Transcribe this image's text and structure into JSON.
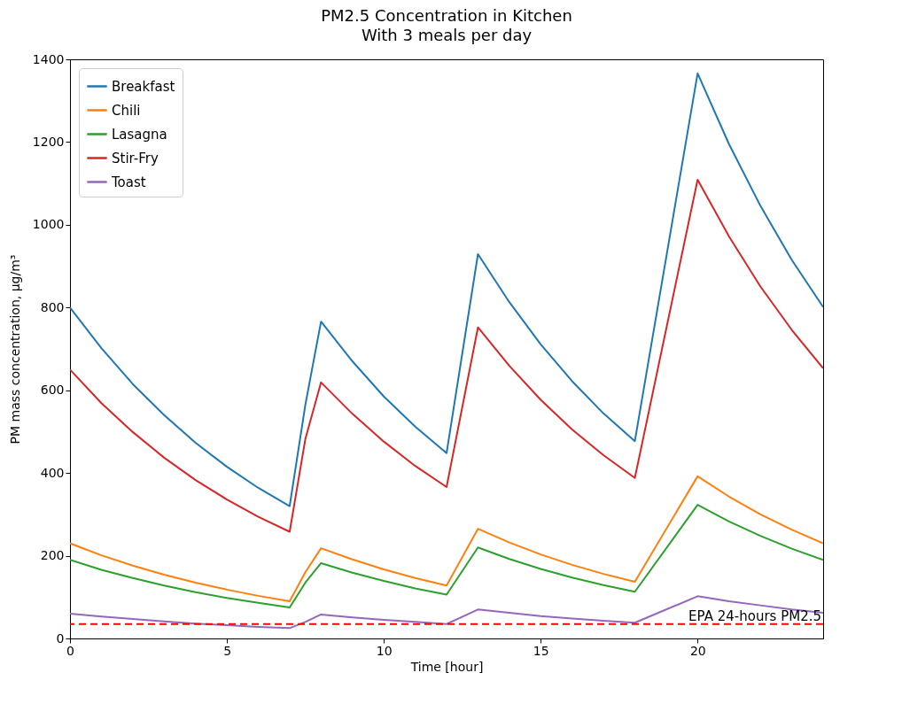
{
  "chart_data": {
    "type": "line",
    "title": "PM2.5 Concentration in Kitchen",
    "subtitle": "With 3 meals per day",
    "xlabel": "Time [hour]",
    "ylabel": "PM mass concentration, μg/m³",
    "x": [
      0,
      1,
      2,
      3,
      4,
      5,
      6,
      7,
      7.5,
      8,
      9,
      10,
      11,
      12,
      13,
      14,
      15,
      16,
      17,
      18,
      20,
      21,
      22,
      23,
      24
    ],
    "series": [
      {
        "name": "Breakfast",
        "color": "#1f77b4",
        "values": [
          800,
          702,
          615,
          540,
          473,
          415,
          364,
          320,
          565,
          766,
          670,
          585,
          512,
          448,
          929,
          813,
          711,
          622,
          544,
          477,
          1366,
          1195,
          1046,
          915,
          801
        ]
      },
      {
        "name": "Chili",
        "color": "#ff7f0e",
        "values": [
          230,
          201,
          176,
          154,
          135,
          118,
          103,
          90,
          160,
          218,
          191,
          167,
          146,
          128,
          265,
          232,
          203,
          178,
          156,
          137,
          392,
          343,
          300,
          263,
          230
        ]
      },
      {
        "name": "Lasagna",
        "color": "#2ca02c",
        "values": [
          190,
          166,
          146,
          128,
          112,
          98,
          86,
          75,
          135,
          182,
          159,
          139,
          121,
          106,
          220,
          192,
          168,
          147,
          129,
          113,
          323,
          283,
          248,
          217,
          190
        ]
      },
      {
        "name": "Stir-Fry",
        "color": "#d62728",
        "values": [
          650,
          569,
          499,
          437,
          383,
          336,
          294,
          258,
          482,
          619,
          543,
          476,
          417,
          366,
          752,
          659,
          577,
          505,
          443,
          388,
          1109,
          972,
          851,
          746,
          653
        ]
      },
      {
        "name": "Toast",
        "color": "#9467bd",
        "values": [
          60,
          53,
          47,
          41,
          36,
          32,
          28,
          25,
          40,
          58,
          51,
          45,
          40,
          35,
          70,
          62,
          54,
          48,
          43,
          38,
          102,
          90,
          80,
          70,
          62
        ]
      }
    ],
    "xlim": [
      0,
      24
    ],
    "xticks": [
      0,
      5,
      10,
      15,
      20
    ],
    "ylim": [
      0,
      1400
    ],
    "yticks": [
      0,
      200,
      400,
      600,
      800,
      1000,
      1200,
      1400
    ],
    "ref_lines": [
      {
        "axis": "y",
        "value": 35,
        "label": "EPA 24-hours PM2.5",
        "color": "#ff0000",
        "line_style": "dashed"
      }
    ],
    "grid": false,
    "legend": "top left"
  }
}
